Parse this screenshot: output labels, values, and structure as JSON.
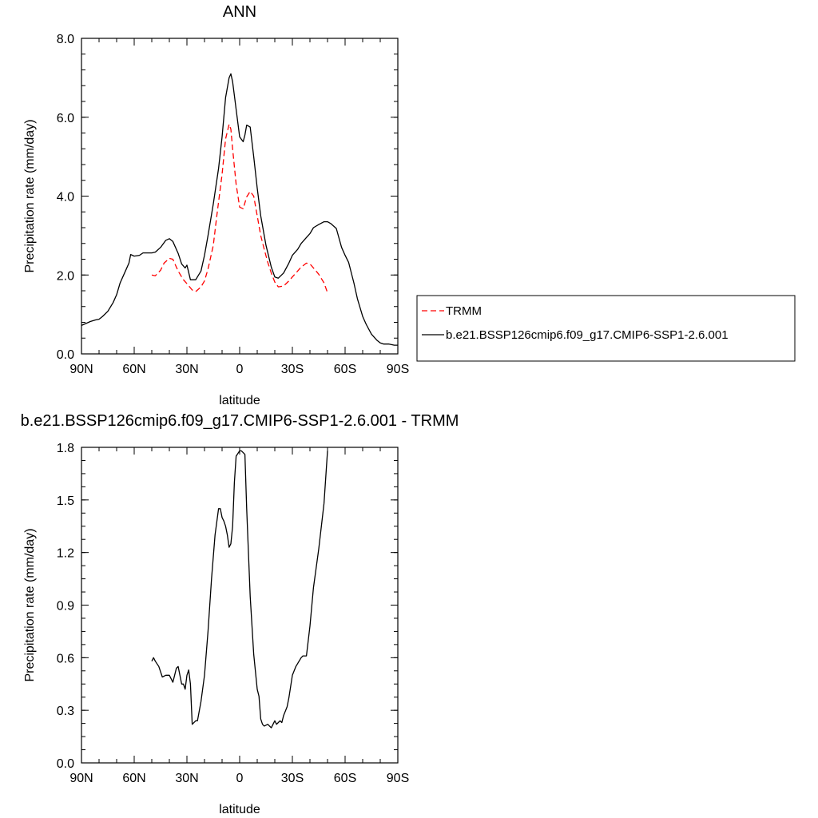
{
  "chart_data": [
    {
      "type": "line",
      "title": "ANN",
      "xlabel": "latitude",
      "ylabel": "Precipitation rate (mm/day)",
      "xlim": [
        90,
        -90
      ],
      "ylim": [
        0.0,
        8.0
      ],
      "xticks": [
        90,
        60,
        30,
        0,
        -30,
        -60,
        -90
      ],
      "xtick_labels": [
        "90N",
        "60N",
        "30N",
        "0",
        "30S",
        "60S",
        "90S"
      ],
      "yticks": [
        0.0,
        2.0,
        4.0,
        6.0,
        8.0
      ],
      "ytick_labels": [
        "0.0",
        "2.0",
        "4.0",
        "6.0",
        "8.0"
      ],
      "grid": false,
      "legend_position": "right",
      "series": [
        {
          "name": "TRMM",
          "color": "#ff0000",
          "dash": "dashed",
          "x": [
            50,
            48,
            45,
            43,
            40,
            38,
            35,
            32,
            30,
            27,
            25,
            22,
            20,
            18,
            15,
            13,
            10,
            8,
            6,
            5,
            4,
            2,
            0,
            -2,
            -4,
            -6,
            -8,
            -10,
            -12,
            -14,
            -16,
            -18,
            -20,
            -22,
            -25,
            -28,
            -30,
            -32,
            -35,
            -38,
            -40,
            -42,
            -45,
            -48,
            -50
          ],
          "y": [
            2.0,
            1.98,
            2.12,
            2.3,
            2.42,
            2.4,
            2.1,
            1.88,
            1.78,
            1.62,
            1.58,
            1.7,
            1.85,
            2.15,
            2.75,
            3.5,
            4.55,
            5.45,
            5.82,
            5.7,
            5.2,
            4.3,
            3.72,
            3.68,
            3.98,
            4.12,
            4.0,
            3.5,
            3.0,
            2.65,
            2.32,
            2.05,
            1.82,
            1.7,
            1.72,
            1.85,
            1.95,
            2.05,
            2.2,
            2.3,
            2.28,
            2.18,
            2.02,
            1.8,
            1.55
          ]
        },
        {
          "name": "b.e21.BSSP126cmip6.f09_g17.CMIP6-SSP1-2.6.001",
          "color": "#000000",
          "dash": "solid",
          "x": [
            90,
            87,
            85,
            82,
            80,
            78,
            75,
            72,
            70,
            68,
            65,
            63,
            62,
            60,
            57,
            55,
            52,
            50,
            48,
            45,
            42,
            40,
            38,
            35,
            33,
            31,
            30,
            28,
            25,
            22,
            20,
            18,
            15,
            12,
            10,
            8,
            6,
            5,
            4,
            2,
            0,
            -2,
            -3,
            -4,
            -6,
            -8,
            -10,
            -12,
            -15,
            -18,
            -20,
            -22,
            -25,
            -28,
            -30,
            -33,
            -35,
            -38,
            -40,
            -42,
            -45,
            -48,
            -50,
            -52,
            -55,
            -58,
            -60,
            -62,
            -65,
            -67,
            -70,
            -72,
            -75,
            -78,
            -80,
            -82,
            -85,
            -88,
            -90
          ],
          "y": [
            0.72,
            0.78,
            0.82,
            0.86,
            0.88,
            0.95,
            1.08,
            1.3,
            1.5,
            1.8,
            2.1,
            2.3,
            2.52,
            2.48,
            2.5,
            2.56,
            2.56,
            2.56,
            2.58,
            2.7,
            2.88,
            2.92,
            2.85,
            2.55,
            2.28,
            2.18,
            2.25,
            1.88,
            1.88,
            2.1,
            2.5,
            3.0,
            3.8,
            4.7,
            5.5,
            6.5,
            7.0,
            7.1,
            6.9,
            6.2,
            5.5,
            5.38,
            5.55,
            5.8,
            5.75,
            5.0,
            4.2,
            3.5,
            2.75,
            2.2,
            1.95,
            1.92,
            2.05,
            2.3,
            2.5,
            2.65,
            2.8,
            2.95,
            3.05,
            3.2,
            3.28,
            3.35,
            3.35,
            3.3,
            3.18,
            2.7,
            2.5,
            2.32,
            1.8,
            1.4,
            0.95,
            0.75,
            0.5,
            0.35,
            0.28,
            0.25,
            0.25,
            0.22,
            0.22
          ]
        }
      ]
    },
    {
      "type": "line",
      "title": "b.e21.BSSP126cmip6.f09_g17.CMIP6-SSP1-2.6.001 - TRMM",
      "xlabel": "latitude",
      "ylabel": "Precipitation rate (mm/day)",
      "xlim": [
        90,
        -90
      ],
      "ylim": [
        0.0,
        1.8
      ],
      "xticks": [
        90,
        60,
        30,
        0,
        -30,
        -60,
        -90
      ],
      "xtick_labels": [
        "90N",
        "60N",
        "30N",
        "0",
        "30S",
        "60S",
        "90S"
      ],
      "yticks": [
        0.0,
        0.3,
        0.6,
        0.9,
        1.2,
        1.5,
        1.8
      ],
      "ytick_labels": [
        "0.0",
        "0.3",
        "0.6",
        "0.9",
        "1.2",
        "1.5",
        "1.8"
      ],
      "grid": false,
      "series": [
        {
          "color": "#000000",
          "dash": "solid",
          "x": [
            50,
            49,
            48,
            46,
            45,
            44,
            42,
            41,
            40,
            38,
            37,
            36,
            35,
            34,
            33,
            32,
            31,
            30,
            29,
            28,
            27,
            25,
            24,
            22,
            20,
            18,
            16,
            14,
            12,
            11,
            10,
            9,
            8,
            7,
            6,
            5,
            4,
            3,
            2,
            0,
            -1,
            -2,
            -3,
            -4,
            -6,
            -8,
            -9,
            -10,
            -11,
            -12,
            -13,
            -14,
            -16,
            -17,
            -18,
            -19,
            -20,
            -21,
            -22,
            -23,
            -24,
            -25,
            -27,
            -28,
            -30,
            -32,
            -35,
            -36,
            -37,
            -38,
            -40,
            -42,
            -45,
            -48,
            -50
          ],
          "y": [
            0.58,
            0.6,
            0.58,
            0.55,
            0.52,
            0.49,
            0.5,
            0.5,
            0.5,
            0.46,
            0.5,
            0.54,
            0.55,
            0.5,
            0.45,
            0.45,
            0.42,
            0.5,
            0.53,
            0.45,
            0.22,
            0.24,
            0.24,
            0.35,
            0.5,
            0.75,
            1.05,
            1.3,
            1.45,
            1.45,
            1.4,
            1.38,
            1.35,
            1.3,
            1.23,
            1.25,
            1.35,
            1.6,
            1.75,
            1.78,
            1.78,
            1.77,
            1.76,
            1.45,
            0.95,
            0.62,
            0.52,
            0.42,
            0.38,
            0.25,
            0.22,
            0.21,
            0.22,
            0.21,
            0.2,
            0.22,
            0.24,
            0.22,
            0.23,
            0.24,
            0.23,
            0.27,
            0.32,
            0.37,
            0.5,
            0.55,
            0.6,
            0.61,
            0.61,
            0.61,
            0.78,
            1.0,
            1.22,
            1.48,
            1.78
          ]
        }
      ]
    }
  ]
}
